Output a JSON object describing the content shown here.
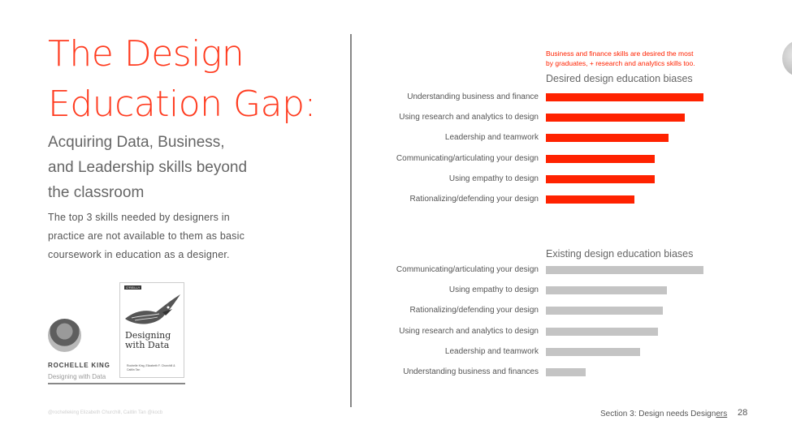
{
  "slide": {
    "title_lines": [
      "The Design",
      "Education Gap:"
    ],
    "subtitle_lines": [
      "Acquiring Data, Business,",
      "and Leadership skills beyond",
      "the classroom"
    ],
    "description_lines": [
      "The top 3 skills needed by designers in",
      "practice are not available to them as basic",
      "coursework in education as a designer."
    ],
    "author_name": "ROCHELLE KING",
    "author_subtitle": "Designing with Data",
    "book": {
      "publisher": "O'REILLY",
      "title_lines": [
        "Designing",
        "with Data"
      ],
      "authors": "Rochelle King, Elizabeth F. Churchill & Caitlin Tan"
    },
    "footer_left": "@rochelleking Elizabeth Churchill, Caitlin Tan @kocb",
    "footer_right_prefix": "Section 3: Design needs Design",
    "footer_right_underlined": "ers",
    "page_number": "28",
    "accent_color": "#ff2200",
    "annotation_lines": [
      "Business and finance skills are desired the most",
      "by graduates, + research and analytics skills too."
    ]
  },
  "chart_data": [
    {
      "type": "bar",
      "orientation": "horizontal",
      "title": "Desired design education biases",
      "categories": [
        "Understanding business and finance",
        "Using research and analytics to design",
        "Leadership and teamwork",
        "Communicating/articulating your design",
        "Using empathy to design",
        "Rationalizing/defending your design"
      ],
      "values": [
        100,
        88,
        78,
        69,
        69,
        56
      ],
      "color": "#ff2200",
      "xlim": [
        0,
        100
      ],
      "grid": false
    },
    {
      "type": "bar",
      "orientation": "horizontal",
      "title": "Existing design education biases",
      "categories": [
        "Communicating/articulating your design",
        "Using empathy to design",
        "Rationalizing/defending your design",
        "Using research and analytics to design",
        "Leadership and teamwork",
        "Understanding business and finances"
      ],
      "values": [
        100,
        77,
        74,
        71,
        60,
        25
      ],
      "color": "#c4c4c4",
      "xlim": [
        0,
        100
      ],
      "grid": false
    }
  ]
}
